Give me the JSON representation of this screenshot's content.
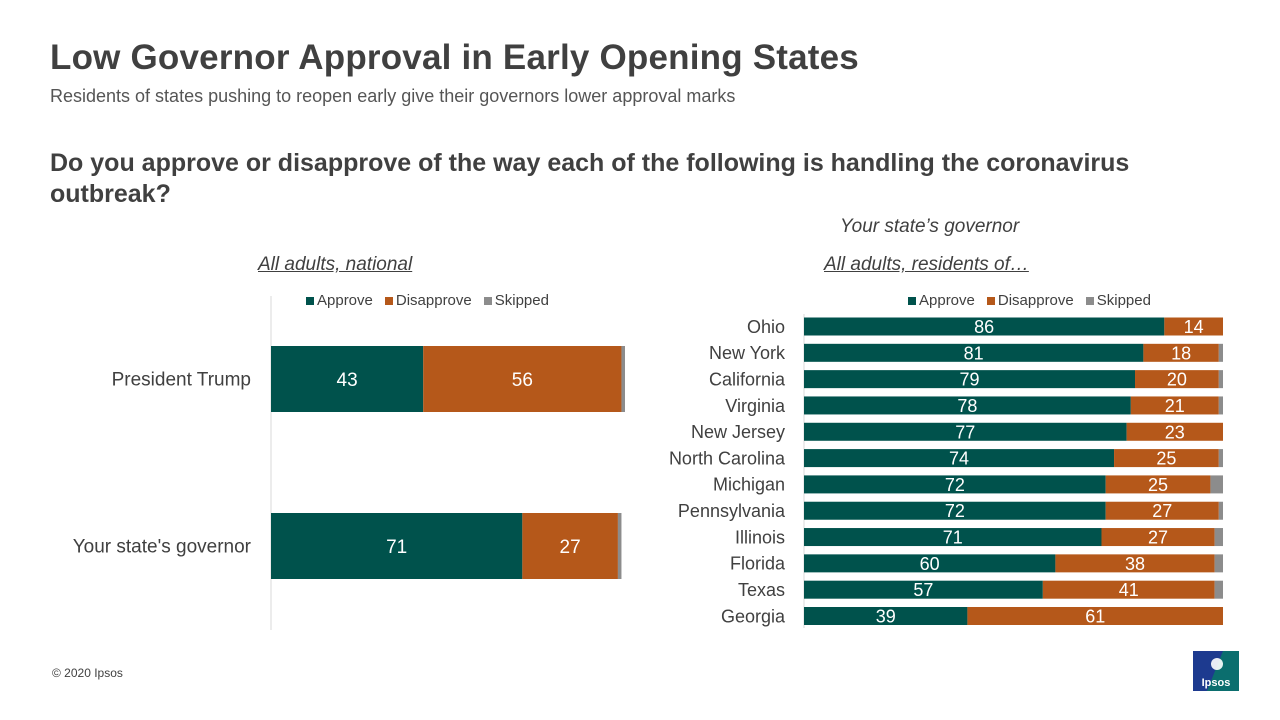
{
  "header": {
    "title": "Low Governor Approval in Early Opening States",
    "subtitle": "Residents of states pushing  to reopen early give their governors lower approval marks",
    "question": "Do you approve or disapprove of the way each of the following is handling the coronavirus outbreak?"
  },
  "left_panel": {
    "subheading": "All adults, national"
  },
  "right_panel": {
    "heading": "Your state’s governor",
    "subheading": "All adults, residents of…"
  },
  "legend": {
    "approve": "Approve",
    "disapprove": "Disapprove",
    "skipped": "Skipped"
  },
  "colors": {
    "approve": "#00524C",
    "disapprove": "#B5581A",
    "skipped": "#8C8C8C"
  },
  "footer": {
    "copyright": "© 2020 Ipsos",
    "logo_text": "Ipsos"
  },
  "chart_data": [
    {
      "type": "bar",
      "orientation": "horizontal",
      "stacked": true,
      "categories": [
        "President Trump",
        "Your state's governor"
      ],
      "series": [
        {
          "name": "Approve",
          "values": [
            43,
            71
          ]
        },
        {
          "name": "Disapprove",
          "values": [
            56,
            27
          ]
        },
        {
          "name": "Skipped",
          "values": [
            1,
            1
          ]
        }
      ],
      "xlim": [
        0,
        100
      ],
      "legend": "top"
    },
    {
      "type": "bar",
      "orientation": "horizontal",
      "stacked": true,
      "categories": [
        "Ohio",
        "New York",
        "California",
        "Virginia",
        "New Jersey",
        "North Carolina",
        "Michigan",
        "Pennsylvania",
        "Illinois",
        "Florida",
        "Texas",
        "Georgia"
      ],
      "series": [
        {
          "name": "Approve",
          "values": [
            86,
            81,
            79,
            78,
            77,
            74,
            72,
            72,
            71,
            60,
            57,
            39
          ]
        },
        {
          "name": "Disapprove",
          "values": [
            14,
            18,
            20,
            21,
            23,
            25,
            25,
            27,
            27,
            38,
            41,
            61
          ]
        },
        {
          "name": "Skipped",
          "values": [
            0,
            1,
            1,
            1,
            0,
            1,
            3,
            1,
            2,
            2,
            2,
            0
          ]
        }
      ],
      "xlim": [
        0,
        100
      ],
      "legend": "top"
    }
  ]
}
